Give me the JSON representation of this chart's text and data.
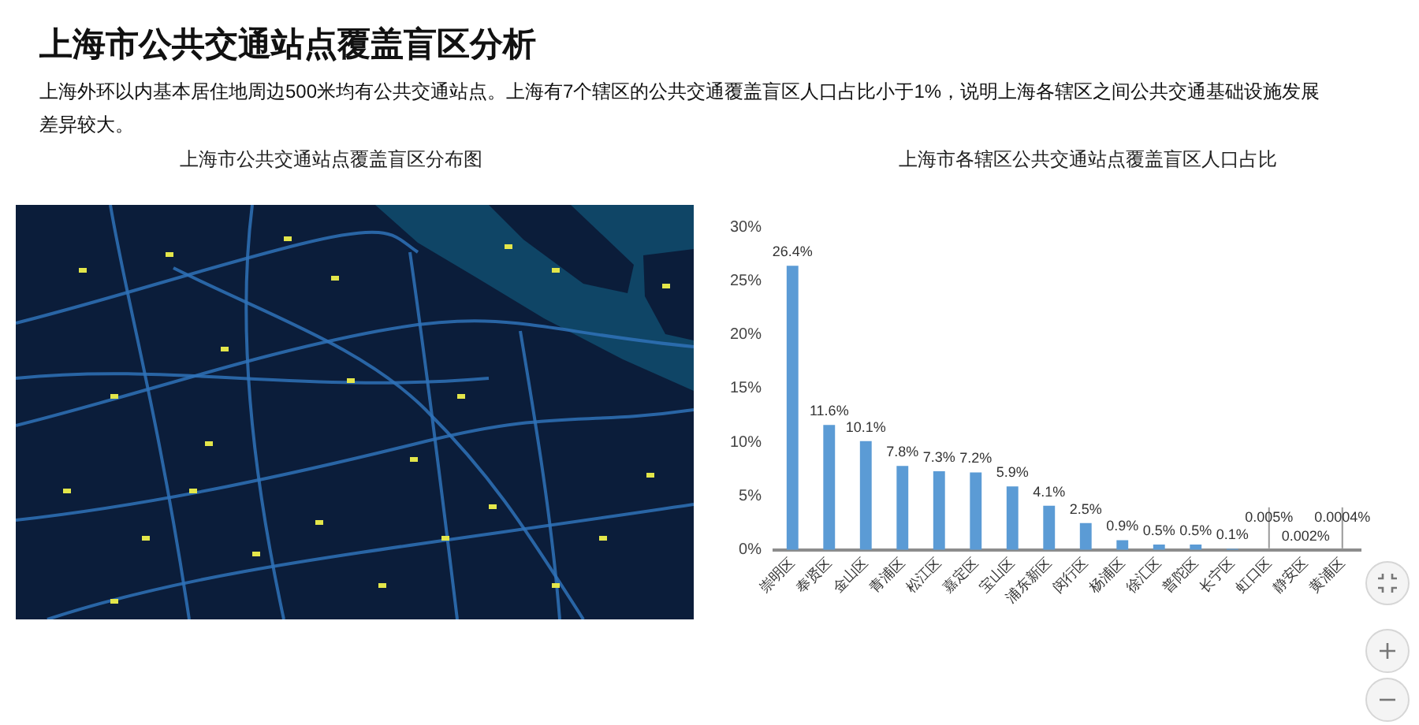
{
  "chart_data": [
    {
      "type": "other",
      "title": "上海市公共交通站点覆盖盲区分析",
      "subtitle": "上海外环以内基本居住地周边500米均有公共交通站点。上海有7个辖区的公共交通覆盖盲区人口占比小于1%，说明上海各辖区之间公共交通基础设施发展差异较大。",
      "annotations": [
        "上海市公共交通站点覆盖盲区分布图"
      ]
    },
    {
      "type": "bar",
      "title": "上海市各辖区公共交通站点覆盖盲区人口占比",
      "categories": [
        "崇明区",
        "奉贤区",
        "金山区",
        "青浦区",
        "松江区",
        "嘉定区",
        "宝山区",
        "浦东新区",
        "闵行区",
        "杨浦区",
        "徐汇区",
        "普陀区",
        "长宁区",
        "虹口区",
        "静安区",
        "黄浦区"
      ],
      "values": [
        26.4,
        11.6,
        10.1,
        7.8,
        7.3,
        7.2,
        5.9,
        4.1,
        2.5,
        0.9,
        0.5,
        0.5,
        0.1,
        0.005,
        0.002,
        0.0004
      ],
      "value_labels": [
        "26.4%",
        "11.6%",
        "10.1%",
        "7.8%",
        "7.3%",
        "7.2%",
        "5.9%",
        "4.1%",
        "2.5%",
        "0.9%",
        "0.5%",
        "0.5%",
        "0.1%",
        "0.005%",
        "0.002%",
        "0.0004%"
      ],
      "color": "#5b9bd5",
      "ylim": [
        0,
        30
      ],
      "yticks": [
        {
          "value": 0,
          "label": "0%"
        },
        {
          "value": 5,
          "label": "5%"
        },
        {
          "value": 10,
          "label": "10%"
        },
        {
          "value": 15,
          "label": "15%"
        },
        {
          "value": 20,
          "label": "20%"
        },
        {
          "value": 25,
          "label": "25%"
        },
        {
          "value": 30,
          "label": "30%"
        }
      ]
    }
  ]
}
